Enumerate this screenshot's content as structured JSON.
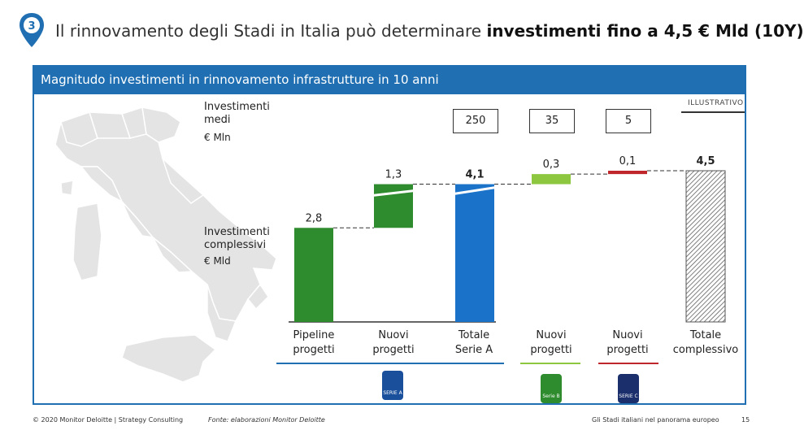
{
  "slide": {
    "number": "3",
    "title_regular": "Il rinnovamento degli Stadi in Italia può determinare ",
    "title_bold": "investimenti fino a 4,5 € Mld (10Y)"
  },
  "panel": {
    "header": "Magnitudo investimenti in rinnovamento infrastrutture in 10 anni",
    "illustrativo": "ILLUSTRATIVO"
  },
  "labels": {
    "avg_title_1": "Investimenti",
    "avg_title_2": "medi",
    "avg_unit": "€ Mln",
    "tot_title_1": "Investimenti",
    "tot_title_2": "complessivi",
    "tot_unit": "€ Mld"
  },
  "average_values": [
    "250",
    "35",
    "5"
  ],
  "logos": [
    {
      "name": "serie-a-logo",
      "text": "SERIE A",
      "color": "#1a4f9c"
    },
    {
      "name": "serie-b-logo",
      "text": "Serie B",
      "color": "#2e8b2e"
    },
    {
      "name": "serie-c-logo",
      "text": "SERIE C",
      "color": "#1a2f6b"
    }
  ],
  "chart_data": {
    "type": "waterfall",
    "unit": "€ Mld",
    "categories": [
      {
        "label_1": "Pipeline",
        "label_2": "progetti",
        "value": 2.8,
        "value_label": "2,8",
        "kind": "total",
        "color": "#2e8b2e"
      },
      {
        "label_1": "Nuovi",
        "label_2": "progetti",
        "value": 1.3,
        "value_label": "1,3",
        "kind": "increment",
        "color": "#2e8b2e"
      },
      {
        "label_1": "Totale",
        "label_2": "Serie A",
        "value": 4.1,
        "value_label": "4,1",
        "kind": "total",
        "color": "#1a73c9"
      },
      {
        "label_1": "Nuovi",
        "label_2": "progetti",
        "value": 0.3,
        "value_label": "0,3",
        "kind": "increment",
        "color": "#8dc63f"
      },
      {
        "label_1": "Nuovi",
        "label_2": "progetti",
        "value": 0.1,
        "value_label": "0,1",
        "kind": "increment",
        "color": "#c0272d"
      },
      {
        "label_1": "Totale",
        "label_2": "complessivo",
        "value": 4.5,
        "value_label": "4,5",
        "kind": "total",
        "color": "#555555"
      }
    ],
    "group_underline_colors": [
      "#1f6fb2",
      "#1f6fb2",
      "#1f6fb2",
      "#8dc63f",
      "#c0272d",
      "#ffffff"
    ]
  },
  "footer": {
    "copyright": "© 2020 Monitor Deloitte | Strategy Consulting",
    "source": "Fonte: elaborazioni Monitor Deloitte",
    "doc_title": "Gli Stadi italiani nel panorama europeo",
    "page": "15"
  }
}
